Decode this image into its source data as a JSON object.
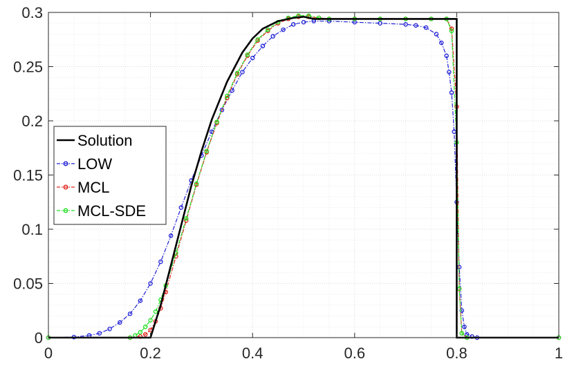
{
  "chart_data": {
    "type": "line",
    "title": "",
    "xlabel": "",
    "ylabel": "",
    "xlim": [
      0,
      1
    ],
    "ylim": [
      0,
      0.3
    ],
    "grid": true,
    "minor_grid": true,
    "legend_position": "center-left",
    "x_ticks": [
      0,
      0.2,
      0.4,
      0.6,
      0.8,
      1
    ],
    "x_tick_labels": [
      "0",
      "0.2",
      "0.4",
      "0.6",
      "0.8",
      "1"
    ],
    "y_ticks": [
      0,
      0.05,
      0.1,
      0.15,
      0.2,
      0.25,
      0.3
    ],
    "y_tick_labels": [
      "0",
      "0.05",
      "0.1",
      "0.15",
      "0.2",
      "0.25",
      "0.3"
    ],
    "series": [
      {
        "name": "Solution",
        "color": "#000000",
        "style": "solid",
        "marker": "none",
        "x": [
          0,
          0.2,
          0.22,
          0.25,
          0.28,
          0.3,
          0.32,
          0.35,
          0.38,
          0.4,
          0.42,
          0.45,
          0.48,
          0.5,
          0.52,
          0.8,
          0.8,
          1
        ],
        "y": [
          0,
          0,
          0.03,
          0.085,
          0.14,
          0.172,
          0.201,
          0.236,
          0.263,
          0.276,
          0.285,
          0.292,
          0.295,
          0.296,
          0.294,
          0.294,
          0,
          0
        ]
      },
      {
        "name": "LOW",
        "color": "#1f1fd6",
        "style": "dashdot",
        "marker": "circle",
        "x": [
          0,
          0.05,
          0.08,
          0.1,
          0.12,
          0.14,
          0.16,
          0.18,
          0.2,
          0.22,
          0.24,
          0.26,
          0.28,
          0.3,
          0.32,
          0.34,
          0.36,
          0.38,
          0.4,
          0.42,
          0.44,
          0.46,
          0.48,
          0.5,
          0.52,
          0.55,
          0.6,
          0.65,
          0.7,
          0.72,
          0.74,
          0.76,
          0.77,
          0.78,
          0.785,
          0.79,
          0.795,
          0.8,
          0.805,
          0.81,
          0.815,
          0.82,
          0.83,
          0.84,
          1
        ],
        "y": [
          0,
          0.0005,
          0.002,
          0.004,
          0.008,
          0.014,
          0.022,
          0.034,
          0.05,
          0.07,
          0.094,
          0.12,
          0.145,
          0.168,
          0.19,
          0.21,
          0.228,
          0.245,
          0.258,
          0.269,
          0.278,
          0.284,
          0.289,
          0.291,
          0.292,
          0.292,
          0.291,
          0.29,
          0.289,
          0.288,
          0.286,
          0.28,
          0.272,
          0.26,
          0.245,
          0.226,
          0.19,
          0.125,
          0.065,
          0.025,
          0.01,
          0.003,
          0.001,
          0,
          0
        ]
      },
      {
        "name": "MCL",
        "color": "#e0241c",
        "style": "dashdot",
        "marker": "circle",
        "x": [
          0,
          0.16,
          0.18,
          0.19,
          0.2,
          0.21,
          0.22,
          0.23,
          0.25,
          0.27,
          0.29,
          0.31,
          0.33,
          0.35,
          0.37,
          0.39,
          0.41,
          0.43,
          0.45,
          0.47,
          0.49,
          0.51,
          0.53,
          0.55,
          0.6,
          0.65,
          0.7,
          0.75,
          0.78,
          0.79,
          0.8,
          0.805,
          0.81,
          0.82,
          1
        ],
        "y": [
          0,
          0,
          0.001,
          0.003,
          0.007,
          0.015,
          0.027,
          0.042,
          0.075,
          0.108,
          0.141,
          0.171,
          0.198,
          0.221,
          0.243,
          0.26,
          0.274,
          0.283,
          0.29,
          0.294,
          0.296,
          0.296,
          0.295,
          0.294,
          0.294,
          0.294,
          0.294,
          0.294,
          0.294,
          0.285,
          0.213,
          0.045,
          0.004,
          0,
          0
        ]
      },
      {
        "name": "MCL-SDE",
        "color": "#22e022",
        "style": "dashdot",
        "marker": "circle",
        "x": [
          0,
          0.16,
          0.17,
          0.18,
          0.19,
          0.2,
          0.21,
          0.22,
          0.23,
          0.25,
          0.27,
          0.29,
          0.31,
          0.33,
          0.35,
          0.37,
          0.39,
          0.41,
          0.43,
          0.45,
          0.47,
          0.49,
          0.51,
          0.53,
          0.55,
          0.6,
          0.65,
          0.7,
          0.75,
          0.78,
          0.79,
          0.8,
          0.805,
          0.81,
          0.82,
          1
        ],
        "y": [
          0,
          0,
          0.002,
          0.005,
          0.01,
          0.016,
          0.024,
          0.035,
          0.048,
          0.078,
          0.11,
          0.142,
          0.172,
          0.199,
          0.223,
          0.244,
          0.261,
          0.275,
          0.284,
          0.291,
          0.295,
          0.297,
          0.297,
          0.295,
          0.294,
          0.294,
          0.294,
          0.294,
          0.294,
          0.294,
          0.283,
          0.18,
          0.045,
          0.004,
          0,
          0
        ]
      }
    ]
  }
}
